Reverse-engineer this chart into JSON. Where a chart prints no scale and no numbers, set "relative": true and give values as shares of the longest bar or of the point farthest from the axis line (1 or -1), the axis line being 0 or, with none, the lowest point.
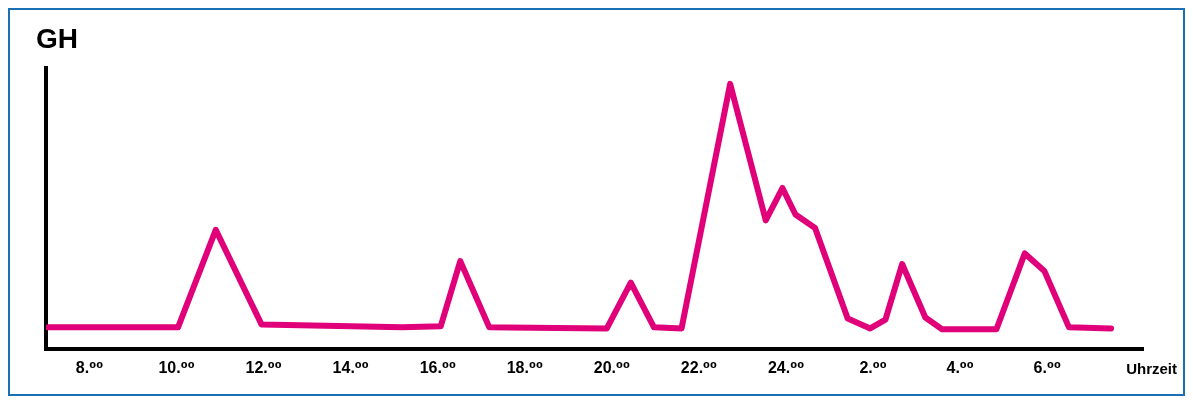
{
  "chart_data": {
    "type": "line",
    "ylabel": "GH",
    "xlabel": "Uhrzeit",
    "relative": true,
    "grid": false,
    "legend": false,
    "marker": "none",
    "line_style": "solid",
    "xlim": [
      "--01-01T07:00",
      "--01-02T08:12"
    ],
    "xticks": [
      {
        "value": "--01-01T08:00",
        "label": "8.⁰⁰"
      },
      {
        "value": "--01-01T10:00",
        "label": "10.⁰⁰"
      },
      {
        "value": "--01-01T12:00",
        "label": "12.⁰⁰"
      },
      {
        "value": "--01-01T14:00",
        "label": "14.⁰⁰"
      },
      {
        "value": "--01-01T16:00",
        "label": "16.⁰⁰"
      },
      {
        "value": "--01-01T18:00",
        "label": "18.⁰⁰"
      },
      {
        "value": "--01-01T20:00",
        "label": "20.⁰⁰"
      },
      {
        "value": "--01-01T22:00",
        "label": "22.⁰⁰"
      },
      {
        "value": "--01-02T00:00",
        "label": "24.⁰⁰"
      },
      {
        "value": "--01-02T02:00",
        "label": "2.⁰⁰"
      },
      {
        "value": "--01-02T04:00",
        "label": "4.⁰⁰"
      },
      {
        "value": "--01-02T06:00",
        "label": "6.⁰⁰"
      }
    ],
    "series": [
      {
        "color": "#e0007a",
        "x": [
          "--01-01T07:03",
          "--01-01T10:02",
          "--01-01T10:54",
          "--01-01T11:57",
          "--01-01T15:11",
          "--01-01T16:04",
          "--01-01T16:31",
          "--01-01T17:11",
          "--01-01T19:53",
          "--01-01T20:26",
          "--01-01T20:58",
          "--01-01T21:36",
          "--01-01T22:43",
          "--01-01T23:32",
          "--01-01T23:55",
          "--01-02T00:13",
          "--01-02T00:40",
          "--01-02T01:25",
          "--01-02T01:56",
          "--01-02T02:17",
          "--01-02T02:40",
          "--01-02T03:12",
          "--01-02T03:35",
          "--01-02T04:50",
          "--01-02T05:29",
          "--01-02T05:56",
          "--01-02T06:30",
          "--01-02T07:28"
        ],
        "values": [
          0.081,
          0.081,
          0.449,
          0.092,
          0.081,
          0.085,
          0.331,
          0.081,
          0.077,
          0.25,
          0.081,
          0.077,
          1,
          0.485,
          0.607,
          0.507,
          0.456,
          0.114,
          0.077,
          0.11,
          0.32,
          0.118,
          0.074,
          0.074,
          0.36,
          0.294,
          0.081,
          0.077
        ]
      }
    ]
  }
}
